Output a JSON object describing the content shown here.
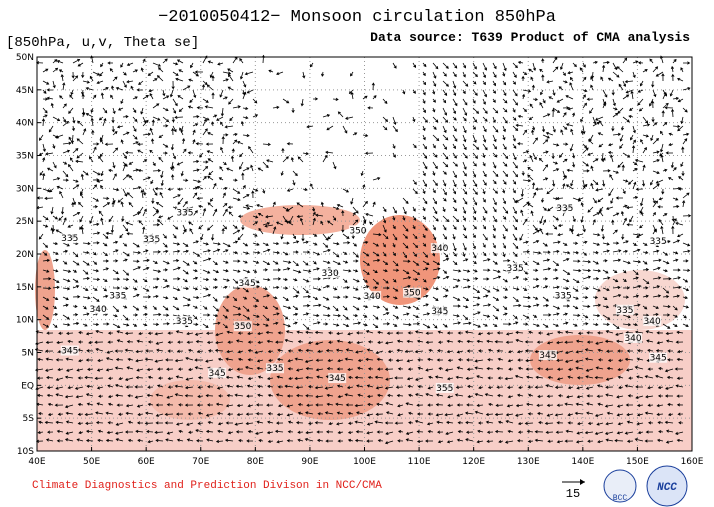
{
  "header": {
    "title": "−2010050412− Monsoon circulation 850hPa",
    "subtitle": "[850hPa, u,v, Theta se]",
    "source": "Data source: T639 Product of CMA analysis"
  },
  "chart_data": {
    "type": "map",
    "xlim": [
      40,
      160
    ],
    "ylim": [
      -10,
      50
    ],
    "xticks": [
      {
        "value": 40,
        "label": "40E"
      },
      {
        "value": 50,
        "label": "50E"
      },
      {
        "value": 60,
        "label": "60E"
      },
      {
        "value": 70,
        "label": "70E"
      },
      {
        "value": 80,
        "label": "80E"
      },
      {
        "value": 90,
        "label": "90E"
      },
      {
        "value": 100,
        "label": "100E"
      },
      {
        "value": 110,
        "label": "110E"
      },
      {
        "value": 120,
        "label": "120E"
      },
      {
        "value": 130,
        "label": "130E"
      },
      {
        "value": 140,
        "label": "140E"
      },
      {
        "value": 150,
        "label": "150E"
      },
      {
        "value": 160,
        "label": "160E"
      }
    ],
    "yticks": [
      {
        "value": -10,
        "label": "10S"
      },
      {
        "value": -5,
        "label": "5S"
      },
      {
        "value": 0,
        "label": "EQ"
      },
      {
        "value": 5,
        "label": "5N"
      },
      {
        "value": 10,
        "label": "10N"
      },
      {
        "value": 15,
        "label": "15N"
      },
      {
        "value": 20,
        "label": "20N"
      },
      {
        "value": 25,
        "label": "25N"
      },
      {
        "value": 30,
        "label": "30N"
      },
      {
        "value": 35,
        "label": "35N"
      },
      {
        "value": 40,
        "label": "40N"
      },
      {
        "value": 45,
        "label": "45N"
      },
      {
        "value": 50,
        "label": "50N"
      }
    ],
    "grid": true,
    "contour_labels": [
      {
        "lon": 46,
        "lat": 22.1,
        "value": 335
      },
      {
        "lon": 67.1,
        "lat": 26,
        "value": 335
      },
      {
        "lon": 61,
        "lat": 22,
        "value": 335
      },
      {
        "lon": 54.8,
        "lat": 13.4,
        "value": 335
      },
      {
        "lon": 51.2,
        "lat": 11.3,
        "value": 340
      },
      {
        "lon": 46,
        "lat": 5,
        "value": 345
      },
      {
        "lon": 67,
        "lat": 9.5,
        "value": 335
      },
      {
        "lon": 77.7,
        "lat": 8.7,
        "value": 350
      },
      {
        "lon": 78.5,
        "lat": 15.3,
        "value": 345
      },
      {
        "lon": 73,
        "lat": 1.6,
        "value": 345
      },
      {
        "lon": 83.6,
        "lat": 2.3,
        "value": 335
      },
      {
        "lon": 98.8,
        "lat": 23.3,
        "value": 350
      },
      {
        "lon": 93.7,
        "lat": 16.8,
        "value": 330
      },
      {
        "lon": 108.7,
        "lat": 13.8,
        "value": 350
      },
      {
        "lon": 101.4,
        "lat": 13.3,
        "value": 340
      },
      {
        "lon": 113.8,
        "lat": 11,
        "value": 345
      },
      {
        "lon": 95,
        "lat": 0.8,
        "value": 345
      },
      {
        "lon": 114.7,
        "lat": -0.7,
        "value": 355
      },
      {
        "lon": 127.6,
        "lat": 17.6,
        "value": 335
      },
      {
        "lon": 136.4,
        "lat": 13.4,
        "value": 335
      },
      {
        "lon": 147.7,
        "lat": 11.2,
        "value": 335
      },
      {
        "lon": 152.7,
        "lat": 9.5,
        "value": 340
      },
      {
        "lon": 133.6,
        "lat": 4.3,
        "value": 345
      },
      {
        "lon": 149.2,
        "lat": 6.9,
        "value": 340
      },
      {
        "lon": 153.8,
        "lat": 3.9,
        "value": 345
      },
      {
        "lon": 153.8,
        "lat": 21.7,
        "value": 335
      },
      {
        "lon": 136.7,
        "lat": 26.7,
        "value": 335
      },
      {
        "lon": 113.8,
        "lat": 20.6,
        "value": 340
      }
    ]
  },
  "footer": "Climate Diagnostics and Prediction Divison in NCC/CMA",
  "reference_vector": 15,
  "logos": [
    "BCC",
    "NCC"
  ]
}
